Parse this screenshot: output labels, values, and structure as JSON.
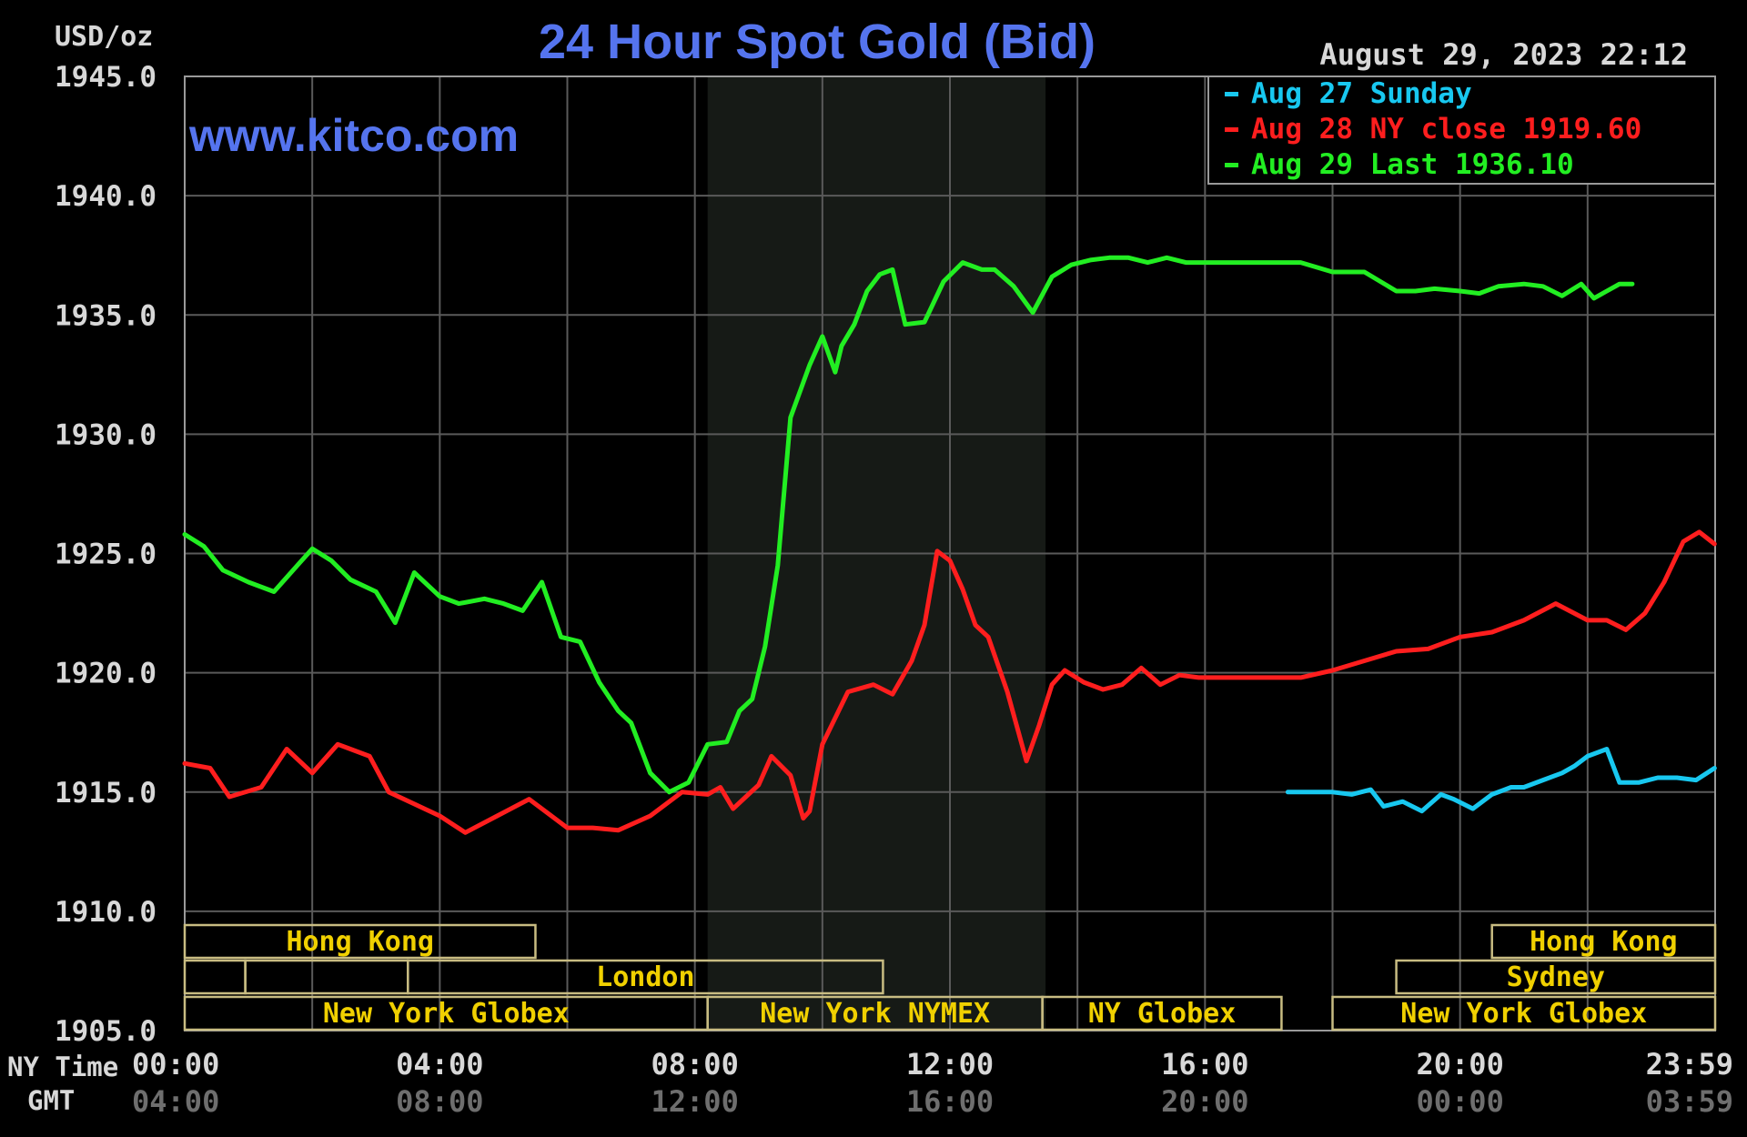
{
  "chart_data": {
    "type": "line",
    "title": "24 Hour Spot Gold (Bid)",
    "unit_label": "USD/oz",
    "watermark": "www.kitco.com",
    "timestamp": "August 29, 2023 22:12",
    "ylim": [
      1905.0,
      1945.0
    ],
    "y_ticks": [
      "1945.0",
      "1940.0",
      "1935.0",
      "1930.0",
      "1925.0",
      "1920.0",
      "1915.0",
      "1910.0",
      "1905.0"
    ],
    "x_range_hours": [
      0,
      24
    ],
    "x_axis": {
      "row_label_ny": "NY Time",
      "row_label_gmt": "GMT",
      "ny_ticks": [
        "00:00",
        "04:00",
        "08:00",
        "12:00",
        "16:00",
        "20:00",
        "23:59"
      ],
      "gmt_ticks": [
        "04:00",
        "08:00",
        "12:00",
        "16:00",
        "20:00",
        "00:00",
        "03:59"
      ]
    },
    "grid": true,
    "shaded_period_hours": [
      8.2,
      13.5
    ],
    "legend": {
      "position": "top-right",
      "items": [
        {
          "label": "Aug 27 Sunday",
          "color": "#18c8f0"
        },
        {
          "label": "Aug 28 NY close 1919.60",
          "color": "#ff1e1e"
        },
        {
          "label": "Aug 29 Last 1936.10",
          "color": "#22ee22"
        }
      ]
    },
    "series": [
      {
        "name": "Aug 27 Sunday",
        "color": "#18c8f0",
        "x": [
          17.3,
          17.6,
          18.0,
          18.3,
          18.6,
          18.8,
          19.1,
          19.4,
          19.7,
          19.9,
          20.2,
          20.5,
          20.8,
          21.0,
          21.3,
          21.6,
          21.8,
          22.0,
          22.3,
          22.5,
          22.8,
          23.1,
          23.4,
          23.7,
          23.99
        ],
        "values": [
          1915.0,
          1915.0,
          1915.0,
          1914.9,
          1915.1,
          1914.4,
          1914.6,
          1914.2,
          1914.9,
          1914.7,
          1914.3,
          1914.9,
          1915.2,
          1915.2,
          1915.5,
          1915.8,
          1916.1,
          1916.5,
          1916.8,
          1915.4,
          1915.4,
          1915.6,
          1915.6,
          1915.5,
          1916.0
        ]
      },
      {
        "name": "Aug 28 NY close 1919.60",
        "color": "#ff1e1e",
        "x": [
          0.0,
          0.4,
          0.7,
          1.2,
          1.6,
          2.0,
          2.4,
          2.9,
          3.2,
          3.6,
          4.0,
          4.4,
          4.9,
          5.4,
          6.0,
          6.4,
          6.8,
          7.3,
          7.8,
          8.2,
          8.4,
          8.6,
          8.8,
          9.0,
          9.2,
          9.5,
          9.7,
          9.8,
          10.0,
          10.4,
          10.8,
          11.1,
          11.4,
          11.6,
          11.8,
          12.0,
          12.2,
          12.4,
          12.6,
          12.9,
          13.2,
          13.4,
          13.6,
          13.8,
          14.1,
          14.4,
          14.7,
          15.0,
          15.3,
          15.6,
          15.9,
          16.3,
          16.7,
          17.0,
          17.5,
          18.0,
          18.5,
          19.0,
          19.5,
          20.0,
          20.5,
          21.0,
          21.5,
          22.0,
          22.3,
          22.6,
          22.9,
          23.2,
          23.5,
          23.75,
          23.99
        ],
        "values": [
          1916.2,
          1916.0,
          1914.8,
          1915.2,
          1916.8,
          1915.8,
          1917.0,
          1916.5,
          1915.0,
          1914.5,
          1914.0,
          1913.3,
          1914.0,
          1914.7,
          1913.5,
          1913.5,
          1913.4,
          1914.0,
          1915.0,
          1914.9,
          1915.2,
          1914.3,
          1914.8,
          1915.3,
          1916.5,
          1915.7,
          1913.9,
          1914.2,
          1917.0,
          1919.2,
          1919.5,
          1919.1,
          1920.5,
          1922.0,
          1925.1,
          1924.7,
          1923.5,
          1922.0,
          1921.5,
          1919.2,
          1916.3,
          1917.8,
          1919.5,
          1920.1,
          1919.6,
          1919.3,
          1919.5,
          1920.2,
          1919.5,
          1919.9,
          1919.8,
          1919.8,
          1919.8,
          1919.8,
          1919.8,
          1920.1,
          1920.5,
          1920.9,
          1921.0,
          1921.5,
          1921.7,
          1922.2,
          1922.9,
          1922.2,
          1922.2,
          1921.8,
          1922.5,
          1923.8,
          1925.5,
          1925.9,
          1925.4
        ]
      },
      {
        "name": "Aug 29 Last 1936.10",
        "color": "#22ee22",
        "x": [
          0.0,
          0.3,
          0.6,
          1.0,
          1.4,
          1.8,
          2.0,
          2.3,
          2.6,
          3.0,
          3.3,
          3.6,
          4.0,
          4.3,
          4.7,
          5.0,
          5.3,
          5.6,
          5.9,
          6.2,
          6.5,
          6.8,
          7.0,
          7.3,
          7.6,
          7.9,
          8.2,
          8.5,
          8.7,
          8.9,
          9.1,
          9.3,
          9.5,
          9.8,
          10.0,
          10.2,
          10.3,
          10.5,
          10.7,
          10.9,
          11.1,
          11.3,
          11.6,
          11.9,
          12.2,
          12.5,
          12.7,
          13.0,
          13.3,
          13.6,
          13.9,
          14.2,
          14.5,
          14.8,
          15.1,
          15.4,
          15.7,
          16.0,
          16.2,
          16.6,
          17.0,
          17.5,
          18.0,
          18.5,
          19.0,
          19.3,
          19.6,
          20.0,
          20.3,
          20.6,
          21.0,
          21.3,
          21.6,
          21.9,
          22.1,
          22.3,
          22.5,
          22.7
        ],
        "values": [
          1925.8,
          1925.3,
          1924.3,
          1923.8,
          1923.4,
          1924.6,
          1925.2,
          1924.7,
          1923.9,
          1923.4,
          1922.1,
          1924.2,
          1923.2,
          1922.9,
          1923.1,
          1922.9,
          1922.6,
          1923.8,
          1921.5,
          1921.3,
          1919.6,
          1918.4,
          1917.9,
          1915.8,
          1915.0,
          1915.4,
          1917.0,
          1917.1,
          1918.4,
          1918.9,
          1921.1,
          1924.5,
          1930.7,
          1932.9,
          1934.1,
          1932.6,
          1933.7,
          1934.6,
          1936.0,
          1936.7,
          1936.9,
          1934.6,
          1934.7,
          1936.4,
          1937.2,
          1936.9,
          1936.9,
          1936.2,
          1935.1,
          1936.6,
          1937.1,
          1937.3,
          1937.4,
          1937.4,
          1937.2,
          1937.4,
          1937.2,
          1937.2,
          1937.2,
          1937.2,
          1937.2,
          1937.2,
          1936.8,
          1936.8,
          1936.0,
          1936.0,
          1936.1,
          1936.0,
          1935.9,
          1936.2,
          1936.3,
          1936.2,
          1935.8,
          1936.3,
          1935.7,
          1936.0,
          1936.3,
          1936.3
        ]
      }
    ],
    "sessions": [
      {
        "label": "Hong Kong",
        "row": 0,
        "start": 0.0,
        "end": 5.5
      },
      {
        "label": "",
        "row": 1,
        "start": 0.0,
        "end": 0.95
      },
      {
        "label": "",
        "row": 1,
        "start": 0.95,
        "end": 3.5
      },
      {
        "label": "London",
        "row": 1,
        "start": 3.5,
        "end": 10.95
      },
      {
        "label": "New York Globex",
        "row": 2,
        "start": 0.0,
        "end": 8.2
      },
      {
        "label": "New York NYMEX",
        "row": 2,
        "start": 8.2,
        "end": 13.45
      },
      {
        "label": "NY Globex",
        "row": 2,
        "start": 13.45,
        "end": 17.2
      },
      {
        "label": "Hong Kong",
        "row": 0,
        "start": 20.5,
        "end": 24.0
      },
      {
        "label": "Sydney",
        "row": 1,
        "start": 19.0,
        "end": 24.0
      },
      {
        "label": "New York Globex",
        "row": 2,
        "start": 18.0,
        "end": 24.0
      }
    ]
  }
}
